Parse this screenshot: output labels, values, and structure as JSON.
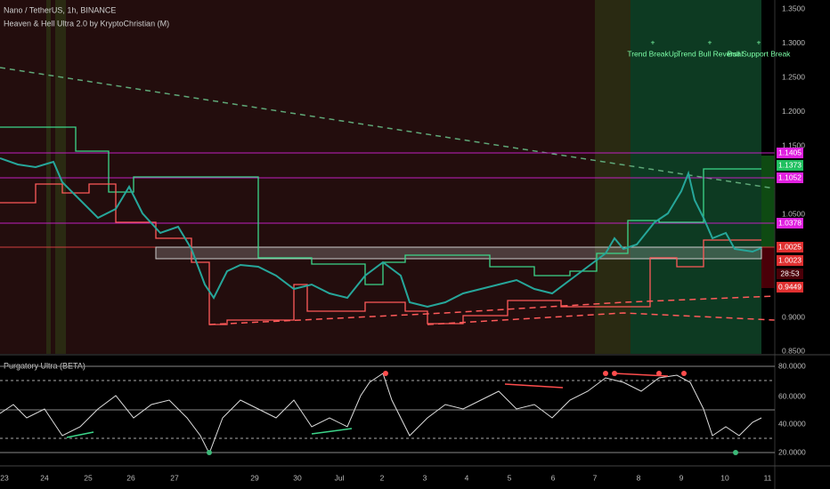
{
  "header": {
    "symbol": "Nano / TetherUS, 1h, BINANCE",
    "indicator": "Heaven & Hell Ultra 2.0 by KryptoChristian (M)"
  },
  "annotations": [
    "Trend BreakUp",
    "Trend Bull Reversal",
    "Bull Support Break"
  ],
  "price_axis": [
    "1.3500",
    "1.3000",
    "1.2500",
    "1.2000",
    "1.1500",
    "1.0500",
    "0.9000",
    "0.8500"
  ],
  "price_badges": [
    "1.1405",
    "1.1373",
    "1.1052",
    "1.0378",
    "1.0025",
    "1.0023",
    "28:53",
    "0.9449"
  ],
  "oscillator": {
    "title": "Purgatory Ultra (BETA)",
    "axis": [
      "80.0000",
      "60.0000",
      "40.0000",
      "20.0000"
    ]
  },
  "dates": [
    "23",
    "24",
    "25",
    "26",
    "27",
    "29",
    "30",
    "Jul",
    "2",
    "3",
    "4",
    "5",
    "6",
    "7",
    "8",
    "9",
    "10",
    "11"
  ]
}
